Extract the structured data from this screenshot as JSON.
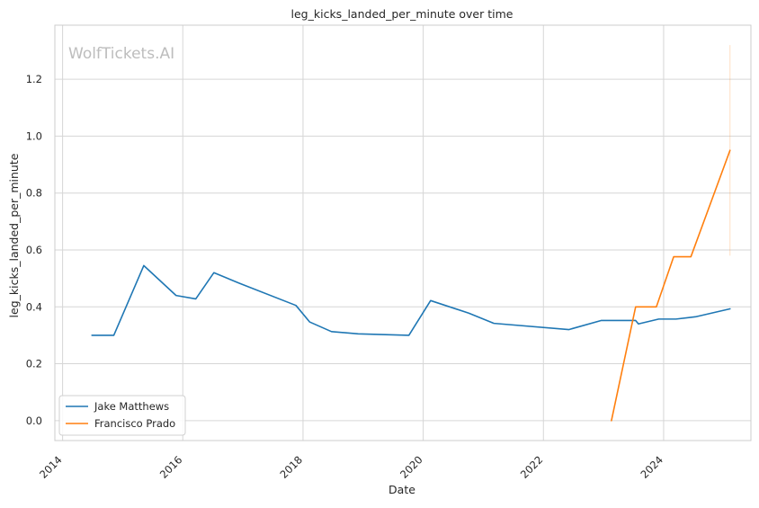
{
  "chart_data": {
    "type": "line",
    "title": "leg_kicks_landed_per_minute over time",
    "xlabel": "Date",
    "ylabel": "leg_kicks_landed_per_minute",
    "watermark": "WolfTickets.AI",
    "xlim": [
      "2013-11-15",
      "2025-06-15"
    ],
    "ylim": [
      -0.07,
      1.39
    ],
    "x_ticks": [
      "2014",
      "2016",
      "2018",
      "2020",
      "2022",
      "2024"
    ],
    "y_ticks": [
      "0.0",
      "0.2",
      "0.4",
      "0.6",
      "0.8",
      "1.0",
      "1.2"
    ],
    "grid": true,
    "legend_position": "lower-left",
    "series": [
      {
        "name": "Jake Matthews",
        "color": "#1f77b4",
        "points": [
          [
            "2014-06-28",
            0.3
          ],
          [
            "2014-11-08",
            0.3
          ],
          [
            "2015-05-09",
            0.545
          ],
          [
            "2015-11-21",
            0.44
          ],
          [
            "2016-03-20",
            0.428
          ],
          [
            "2016-07-08",
            0.52
          ],
          [
            "2016-12-10",
            0.483
          ],
          [
            "2017-11-19",
            0.405
          ],
          [
            "2018-02-10",
            0.347
          ],
          [
            "2018-06-23",
            0.313
          ],
          [
            "2018-12-02",
            0.305
          ],
          [
            "2019-10-06",
            0.3
          ],
          [
            "2020-02-15",
            0.422
          ],
          [
            "2020-10-04",
            0.378
          ],
          [
            "2021-03-06",
            0.342
          ],
          [
            "2022-06-04",
            0.32
          ],
          [
            "2022-12-17",
            0.352
          ],
          [
            "2023-07-15",
            0.352
          ],
          [
            "2023-08-01",
            0.34
          ],
          [
            "2023-12-02",
            0.357
          ],
          [
            "2024-03-16",
            0.357
          ],
          [
            "2024-07-13",
            0.365
          ],
          [
            "2025-02-08",
            0.393
          ]
        ]
      },
      {
        "name": "Francisco Prado",
        "color": "#ff7f0e",
        "points": [
          [
            "2023-02-18",
            0.0
          ],
          [
            "2023-07-15",
            0.4
          ],
          [
            "2023-11-18",
            0.4
          ],
          [
            "2024-03-02",
            0.576
          ],
          [
            "2024-06-15",
            0.576
          ],
          [
            "2025-02-08",
            0.95
          ]
        ],
        "error_band": {
          "x": "2025-02-08",
          "low": 0.58,
          "high": 1.32
        }
      }
    ]
  }
}
